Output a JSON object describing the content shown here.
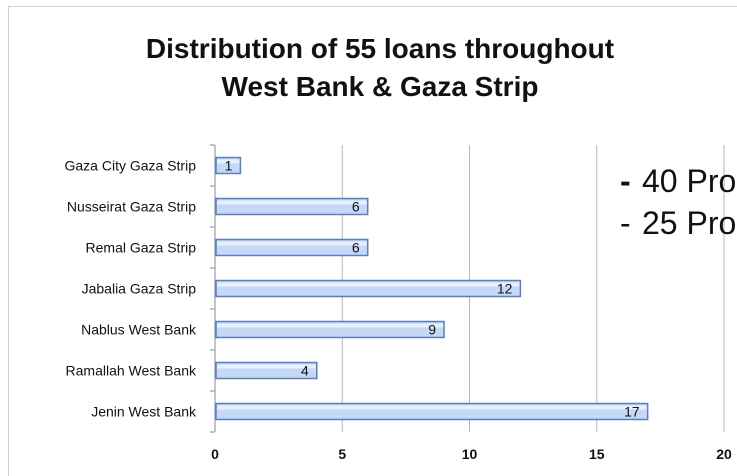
{
  "chart_data": {
    "type": "bar",
    "orientation": "horizontal",
    "title": "Distribution of 55 loans throughout West Bank & Gaza Strip",
    "title_lines": [
      "Distribution of 55 loans throughout",
      "West Bank & Gaza Strip"
    ],
    "categories": [
      "Gaza City Gaza Strip",
      "Nusseirat Gaza Strip",
      "Remal Gaza Strip",
      "Jabalia Gaza Strip",
      "Nablus West Bank",
      "Ramallah West Bank",
      "Jenin West Bank"
    ],
    "values": [
      1,
      6,
      6,
      12,
      9,
      4,
      17
    ],
    "xlim": [
      0,
      20
    ],
    "xticks": [
      0,
      5,
      10,
      15,
      20
    ],
    "grid": "vertical",
    "bar_color": "#c5d9f7",
    "bar_border_color": "#5a7fc0"
  },
  "overlay_text": {
    "line1_dash": "-",
    "line1": "40 Pro",
    "line2_dash": "-",
    "line2": "25 Pro"
  }
}
